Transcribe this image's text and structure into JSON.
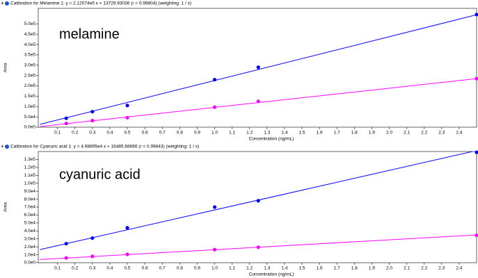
{
  "chart_data": [
    {
      "type": "scatter",
      "title": "Calibration for Melamine 1: y = 2.12074e5 x + 13729.93036 (r = 0.99804)  (weighting: 1 / x)",
      "annotation": "melamine",
      "x_label": "Concentration (ng/mL)",
      "y_label": "Area",
      "xlim": [
        -0.01,
        2.5
      ],
      "ylim": [
        0,
        575000
      ],
      "xticks": [
        0.1,
        0.2,
        0.3,
        0.4,
        0.5,
        0.6,
        0.7,
        0.8,
        0.9,
        {
          "value": 1,
          "label": "1.0"
        },
        1.1,
        1.2,
        1.3,
        1.4,
        1.5,
        1.6,
        1.7,
        1.8,
        1.9,
        {
          "value": 2,
          "label": "2.0"
        },
        2.1,
        2.2,
        2.3,
        2.4
      ],
      "yticks": [
        {
          "value": 0,
          "label": "0.0e0"
        },
        {
          "value": 50000,
          "label": "5.0e4"
        },
        {
          "value": 100000,
          "label": "1.0e5"
        },
        {
          "value": 150000,
          "label": "1.5e5"
        },
        {
          "value": 200000,
          "label": "2.0e5"
        },
        {
          "value": 250000,
          "label": "2.5e5"
        },
        {
          "value": 300000,
          "label": "3.0e5"
        },
        {
          "value": 350000,
          "label": "3.5e5"
        },
        {
          "value": 400000,
          "label": "4.0e5"
        },
        {
          "value": 450000,
          "label": "4.5e5"
        },
        {
          "value": 500000,
          "label": "5.0e5"
        }
      ],
      "series": [
        {
          "color": "#0000ff",
          "x": [
            0.15,
            0.3,
            0.5,
            1.0,
            1.25,
            2.5
          ],
          "values": [
            43000,
            75000,
            105000,
            230000,
            290000,
            545000
          ],
          "line": {
            "x": [
              0,
              2.5
            ],
            "values": [
              13730,
              543915
            ]
          }
        },
        {
          "color": "#ff00ff",
          "x": [
            0.15,
            0.3,
            0.5,
            1.0,
            1.25,
            2.5
          ],
          "values": [
            18000,
            32000,
            46000,
            97000,
            125000,
            235000
          ],
          "line": {
            "x": [
              0,
              2.5
            ],
            "values": [
              3000,
              235000
            ]
          }
        }
      ]
    },
    {
      "type": "scatter",
      "title": "Calibration for Cyanuric acid 1: y = 4.98895e4 x + 16485.68666 (r = 0.99843)  (weighting: 1 / x)",
      "annotation": "cyanuric acid",
      "x_label": "Concentration (ng/mL)",
      "y_label": "Area",
      "xlim": [
        -0.01,
        2.5
      ],
      "ylim": [
        0,
        140000
      ],
      "xticks": [
        0.1,
        0.2,
        0.3,
        0.4,
        0.5,
        0.6,
        0.7,
        0.8,
        0.9,
        {
          "value": 1,
          "label": "1.0"
        },
        1.1,
        1.2,
        1.3,
        1.4,
        1.5,
        1.6,
        1.7,
        1.8,
        1.9,
        {
          "value": 2,
          "label": "2.0"
        },
        2.1,
        2.2,
        2.3,
        2.4
      ],
      "yticks": [
        {
          "value": 0,
          "label": "0.0e0"
        },
        {
          "value": 10000,
          "label": "1.0e4"
        },
        {
          "value": 20000,
          "label": "2.0e4"
        },
        {
          "value": 30000,
          "label": "3.0e4"
        },
        {
          "value": 40000,
          "label": "4.0e4"
        },
        {
          "value": 50000,
          "label": "5.0e4"
        },
        {
          "value": 60000,
          "label": "6.0e4"
        },
        {
          "value": 70000,
          "label": "7.0e4"
        },
        {
          "value": 80000,
          "label": "8.0e4"
        },
        {
          "value": 90000,
          "label": "9.0e4"
        },
        {
          "value": 100000,
          "label": "1.0e5"
        },
        {
          "value": 110000,
          "label": "1.1e5"
        },
        {
          "value": 120000,
          "label": "1.2e5"
        },
        {
          "value": 130000,
          "label": "1.3e5"
        }
      ],
      "series": [
        {
          "color": "#0000ff",
          "x": [
            0.15,
            0.3,
            0.5,
            1.0,
            1.25,
            2.5
          ],
          "values": [
            24000,
            31000,
            44000,
            70000,
            78000,
            139000
          ],
          "line": {
            "x": [
              0,
              2.5
            ],
            "values": [
              16485,
              141209
            ]
          }
        },
        {
          "color": "#ff00ff",
          "x": [
            0.15,
            0.3,
            0.5,
            1.0,
            1.25,
            2.5
          ],
          "values": [
            6000,
            8000,
            10500,
            16500,
            19500,
            34500
          ],
          "line": {
            "x": [
              0,
              2.5
            ],
            "values": [
              4000,
              35000
            ]
          }
        }
      ]
    }
  ]
}
